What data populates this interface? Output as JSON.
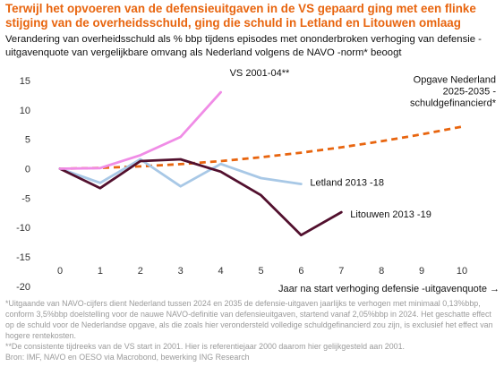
{
  "title": "Terwijl het opvoeren van de defensieuitgaven in de VS gepaard ging met een flinke stijging van de overheidsschuld, ging die schuld in Letland en Litouwen omlaag",
  "subtitle": "Verandering van overheidsschuld  als % bbp tijdens episodes met ononderbroken verhoging van defensie - uitgavenquote van vergelijkbare omvang als Nederland volgens de NAVO  -norm* beoogt",
  "footnotes": [
    "*Uitgaande van NAVO-cijfers dient Nederland tussen 2024 en 2035 de defensie-uitgaven jaarlijks te verhogen met minimaal 0,13%bbp, conform 3,5%bbp doelstelling voor de nauwe NAVO-definitie van defensieuitgaven, startend vanaf 2,05%bbp in 2024. Het geschatte effect op de schuld voor de Nederlandse opgave, als die zoals hier verondersteld volledige schuldgefinancierd zou zijn, is exclusief het effect van hogere rentekosten.",
    "**De consistente tijdreeks van de VS start in 2001. Hier is referentiejaar 2000 daarom hier gelijkgesteld aan 2001.",
    "Bron: IMF, NAVO en OESO via Macrobond, bewerking ING Research"
  ],
  "chart_data": {
    "type": "line",
    "xlabel": "Jaar na start verhoging defensie -uitgavenquote →",
    "ylabel": "",
    "xlim": [
      0,
      10
    ],
    "ylim": [
      -20,
      15
    ],
    "xticks": [
      "0",
      "1",
      "2",
      "3",
      "4",
      "5",
      "6",
      "7",
      "8",
      "9",
      "10"
    ],
    "yticks": [
      "15",
      "10",
      "5",
      "0",
      "-5",
      "-10",
      "-15",
      "-20"
    ],
    "grid": false,
    "series": [
      {
        "name": "VS 2001-04**",
        "color": "#f08ce6",
        "dashed": false,
        "x": [
          0,
          1,
          2,
          3,
          4
        ],
        "y": [
          0,
          0.1,
          2.3,
          5.4,
          13.0
        ]
      },
      {
        "name": "Letland 2013-18",
        "color": "#a8c8e6",
        "dashed": false,
        "x": [
          0,
          1,
          2,
          3,
          4,
          5,
          6
        ],
        "y": [
          0,
          -2.4,
          1.6,
          -3.0,
          0.8,
          -1.6,
          -2.6
        ]
      },
      {
        "name": "Litouwen 2013-19",
        "color": "#52102e",
        "dashed": false,
        "x": [
          0,
          1,
          2,
          3,
          4,
          5,
          6,
          7
        ],
        "y": [
          0,
          -3.3,
          1.3,
          1.6,
          -0.5,
          -4.5,
          -11.3,
          -7.4
        ]
      },
      {
        "name": "Opgave Nederland 2025-2035 - schuldgefinancierd*",
        "color": "#e8650f",
        "dashed": true,
        "x": [
          0,
          1,
          2,
          3,
          4,
          5,
          6,
          7,
          8,
          9,
          10
        ],
        "y": [
          0,
          0.13,
          0.39,
          0.78,
          1.3,
          1.95,
          2.73,
          3.64,
          4.68,
          5.85,
          7.15
        ]
      }
    ],
    "annotations": [
      {
        "series": 0,
        "lines": [
          "VS 2001-04**"
        ]
      },
      {
        "series": 1,
        "lines": [
          "Letland 2013 -18"
        ]
      },
      {
        "series": 2,
        "lines": [
          "Litouwen 2013 -19"
        ]
      },
      {
        "series": 3,
        "lines": [
          "Opgave Nederland",
          "2025-2035 -",
          "schuldgefinancierd*"
        ]
      }
    ]
  }
}
